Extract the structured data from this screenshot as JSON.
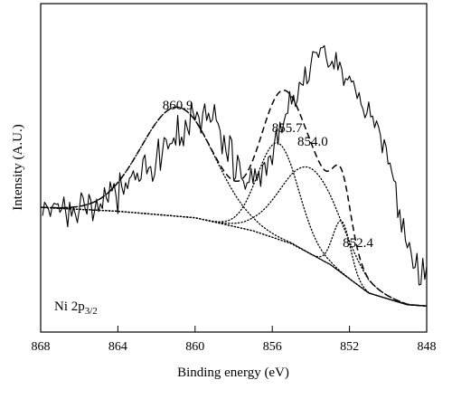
{
  "chart_data": {
    "type": "line",
    "title": "",
    "xlabel": "Binding energy (eV)",
    "ylabel": "Intensity (A.U.)",
    "x_direction": "descending",
    "xlim": [
      868,
      848
    ],
    "ylim": [
      0,
      100
    ],
    "y_ticks_labeled": false,
    "xticks": [
      "868",
      "864",
      "860",
      "856",
      "852",
      "848"
    ],
    "xtick_values": [
      868,
      864,
      860,
      856,
      852,
      848
    ],
    "annotation": {
      "main": "Ni 2p",
      "sub": "3/2"
    },
    "peak_labels": [
      {
        "text": "860.9",
        "x": 860.9
      },
      {
        "text": "855.7",
        "x": 855.7
      },
      {
        "text": "854.0",
        "x": 854.0
      },
      {
        "text": "852.4",
        "x": 852.4
      }
    ],
    "components": [
      {
        "center": 860.9,
        "height": 42,
        "width": 1.9,
        "style": "dotted"
      },
      {
        "center": 855.7,
        "height": 37,
        "width": 1.05,
        "style": "dotted"
      },
      {
        "center": 854.0,
        "height": 33,
        "width": 1.55,
        "style": "dotted"
      },
      {
        "center": 852.4,
        "height": 20,
        "width": 0.45,
        "style": "dotted"
      }
    ],
    "background": {
      "style": "dotted",
      "points": [
        {
          "x": 868,
          "y": 40
        },
        {
          "x": 864,
          "y": 38.5
        },
        {
          "x": 860,
          "y": 36
        },
        {
          "x": 857,
          "y": 31
        },
        {
          "x": 855,
          "y": 26
        },
        {
          "x": 853,
          "y": 18
        },
        {
          "x": 851,
          "y": 7
        },
        {
          "x": 849,
          "y": 2.5
        },
        {
          "x": 848,
          "y": 2
        }
      ]
    },
    "envelope": {
      "style": "dashed"
    },
    "raw_data": {
      "style": "solid",
      "x_start": 867.9,
      "x_step": -0.1,
      "values": [
        36.8,
        42.0,
        40.8,
        39.4,
        36.5,
        40.4,
        41.6,
        41.2,
        41.4,
        38.1,
        39.4,
        44.0,
        37.8,
        32.5,
        42.0,
        36.6,
        39.8,
        37.3,
        34.1,
        39.1,
        45.6,
        43.8,
        39.6,
        37.4,
        45.0,
        42.8,
        34.8,
        38.9,
        43.2,
        38.4,
        41.4,
        39.5,
        47.6,
        43.6,
        42.0,
        49.8,
        46.3,
        49.2,
        44.6,
        37.6,
        53.3,
        48.0,
        45.0,
        49.5,
        47.2,
        51.2,
        52.0,
        54.1,
        50.6,
        53.2,
        50.0,
        50.9,
        58.5,
        60.2,
        52.9,
        55.3,
        55.7,
        50.0,
        52.4,
        59.2,
        66.3,
        54.3,
        60.6,
        66.9,
        66.1,
        62.5,
        64.5,
        64.6,
        66.8,
        64.0,
        75.4,
        63.8,
        67.1,
        63.7,
        73.6,
        70.3,
        67.9,
        80.2,
        76.5,
        73.6,
        76.8,
        74.6,
        68.6,
        76.2,
        79.9,
        73.5,
        76.3,
        72.8,
        73.8,
        79.6,
        73.5,
        72.2,
        69.4,
        60.6,
        67.7,
        61.5,
        57.7,
        67.6,
        65.9,
        50.5,
        51.4,
        60.1,
        57.4,
        51.3,
        50.2,
        47.0,
        49.5,
        49.6,
        55.0,
        49.3,
        54.9,
        50.3,
        53.8,
        48.1,
        56.2,
        57.3,
        52.3,
        59.3,
        59.9,
        56.4,
        64.0,
        70.0,
        64.2,
        72.8,
        68.7,
        72.9,
        75.9,
        76.3,
        84.6,
        79.8,
        83.2,
        78.9,
        81.4,
        88.2,
        87.5,
        87.0,
        94.1,
        87.6,
        88.9,
        95.1,
        100.0,
        99.7,
        99.6,
        97.7,
        101.4,
        101.5,
        102.3,
        97.4,
        94.0,
        94.8,
        96.3,
        93.3,
        99.6,
        92.9,
        96.0,
        93.2,
        86.9,
        89.6,
        89.1,
        90.6,
        88.3,
        88.7,
        85.5,
        81.9,
        84.2,
        79.7,
        77.9,
        74.5,
        76.2,
        80.6,
        74.8,
        75.2,
        70.7,
        73.3,
        71.3,
        67.9,
        61.0,
        66.1,
        63.3,
        56.7,
        57.1,
        53.3,
        50.3,
        49.7,
        36.1,
        39.1,
        30.5,
        35.7,
        27.2,
        24.4,
        26.5,
        22.4,
        16.5,
        16.9,
        22.3,
        10.1,
        10.4,
        20.4,
        12.3,
        17.2,
        7.9,
        9.4,
        14.7,
        10.4,
        10.4,
        7.4,
        13.8,
        0.9,
        3.5,
        8.1,
        -2.4,
        5.7,
        -0.2,
        8.2,
        0.0,
        -3.4
      ]
    }
  }
}
